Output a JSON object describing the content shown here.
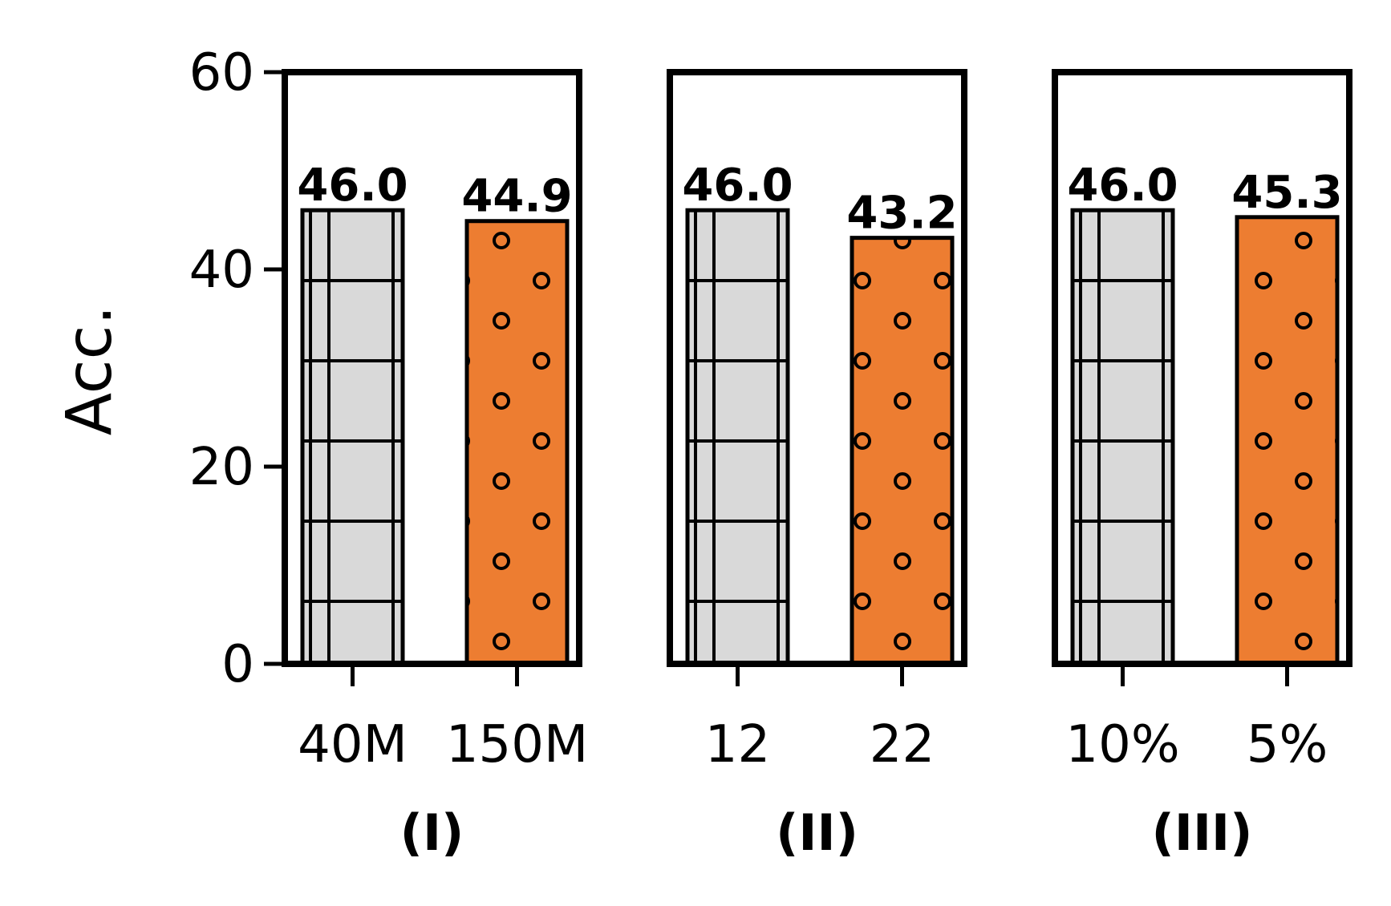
{
  "chart_data": {
    "type": "bar",
    "ylabel": "Acc.",
    "ylim": [
      0,
      60
    ],
    "yticks": [
      "0",
      "20",
      "40",
      "60"
    ],
    "grid": false,
    "colors": {
      "baseline": "#d9d9d9",
      "variant": "#ed7d31",
      "edge": "#000000"
    },
    "patterns": {
      "baseline": "grid-hatch",
      "variant": "dots"
    },
    "panels": [
      {
        "title": "(I)",
        "categories": [
          "40M",
          "150M"
        ],
        "values": [
          46.0,
          44.9
        ],
        "value_labels": [
          "46.0",
          "44.9"
        ]
      },
      {
        "title": "(II)",
        "categories": [
          "12",
          "22"
        ],
        "values": [
          46.0,
          43.2
        ],
        "value_labels": [
          "46.0",
          "43.2"
        ]
      },
      {
        "title": "(III)",
        "categories": [
          "10%",
          "5%"
        ],
        "values": [
          46.0,
          45.3
        ],
        "value_labels": [
          "46.0",
          "45.3"
        ]
      }
    ]
  }
}
